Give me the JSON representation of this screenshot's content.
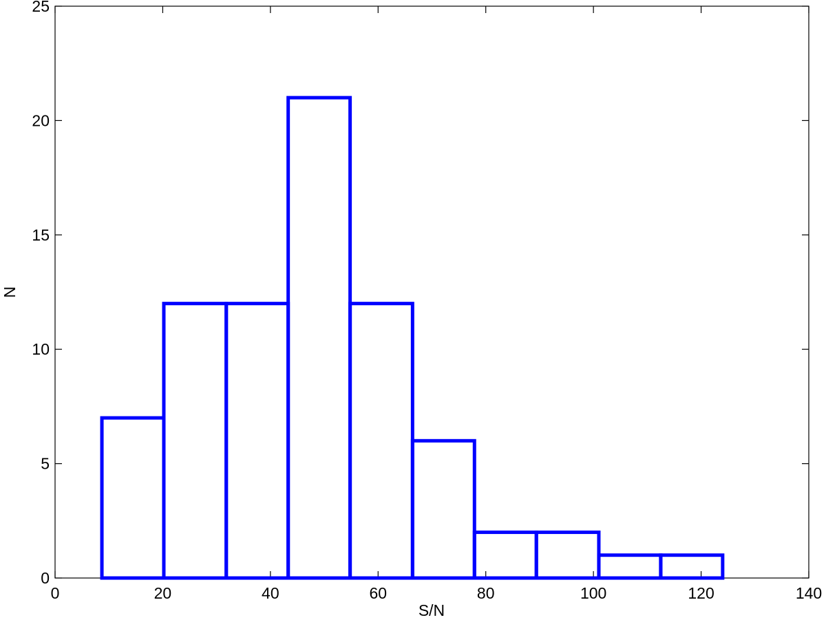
{
  "chart_data": {
    "type": "histogram",
    "xlabel": "S/N",
    "ylabel": "N",
    "bins": [
      8.7,
      20.2,
      31.8,
      43.3,
      54.8,
      66.4,
      77.9,
      89.4,
      101.0,
      112.5,
      124.0
    ],
    "counts": [
      7,
      12,
      12,
      21,
      12,
      6,
      2,
      2,
      1,
      1
    ],
    "color": "#0000ff",
    "xlim": [
      0,
      140
    ],
    "xticks": [
      0,
      20,
      40,
      60,
      80,
      100,
      120,
      140
    ],
    "ylim": [
      0,
      25
    ],
    "yticks": [
      0,
      5,
      10,
      15,
      20,
      25
    ]
  }
}
